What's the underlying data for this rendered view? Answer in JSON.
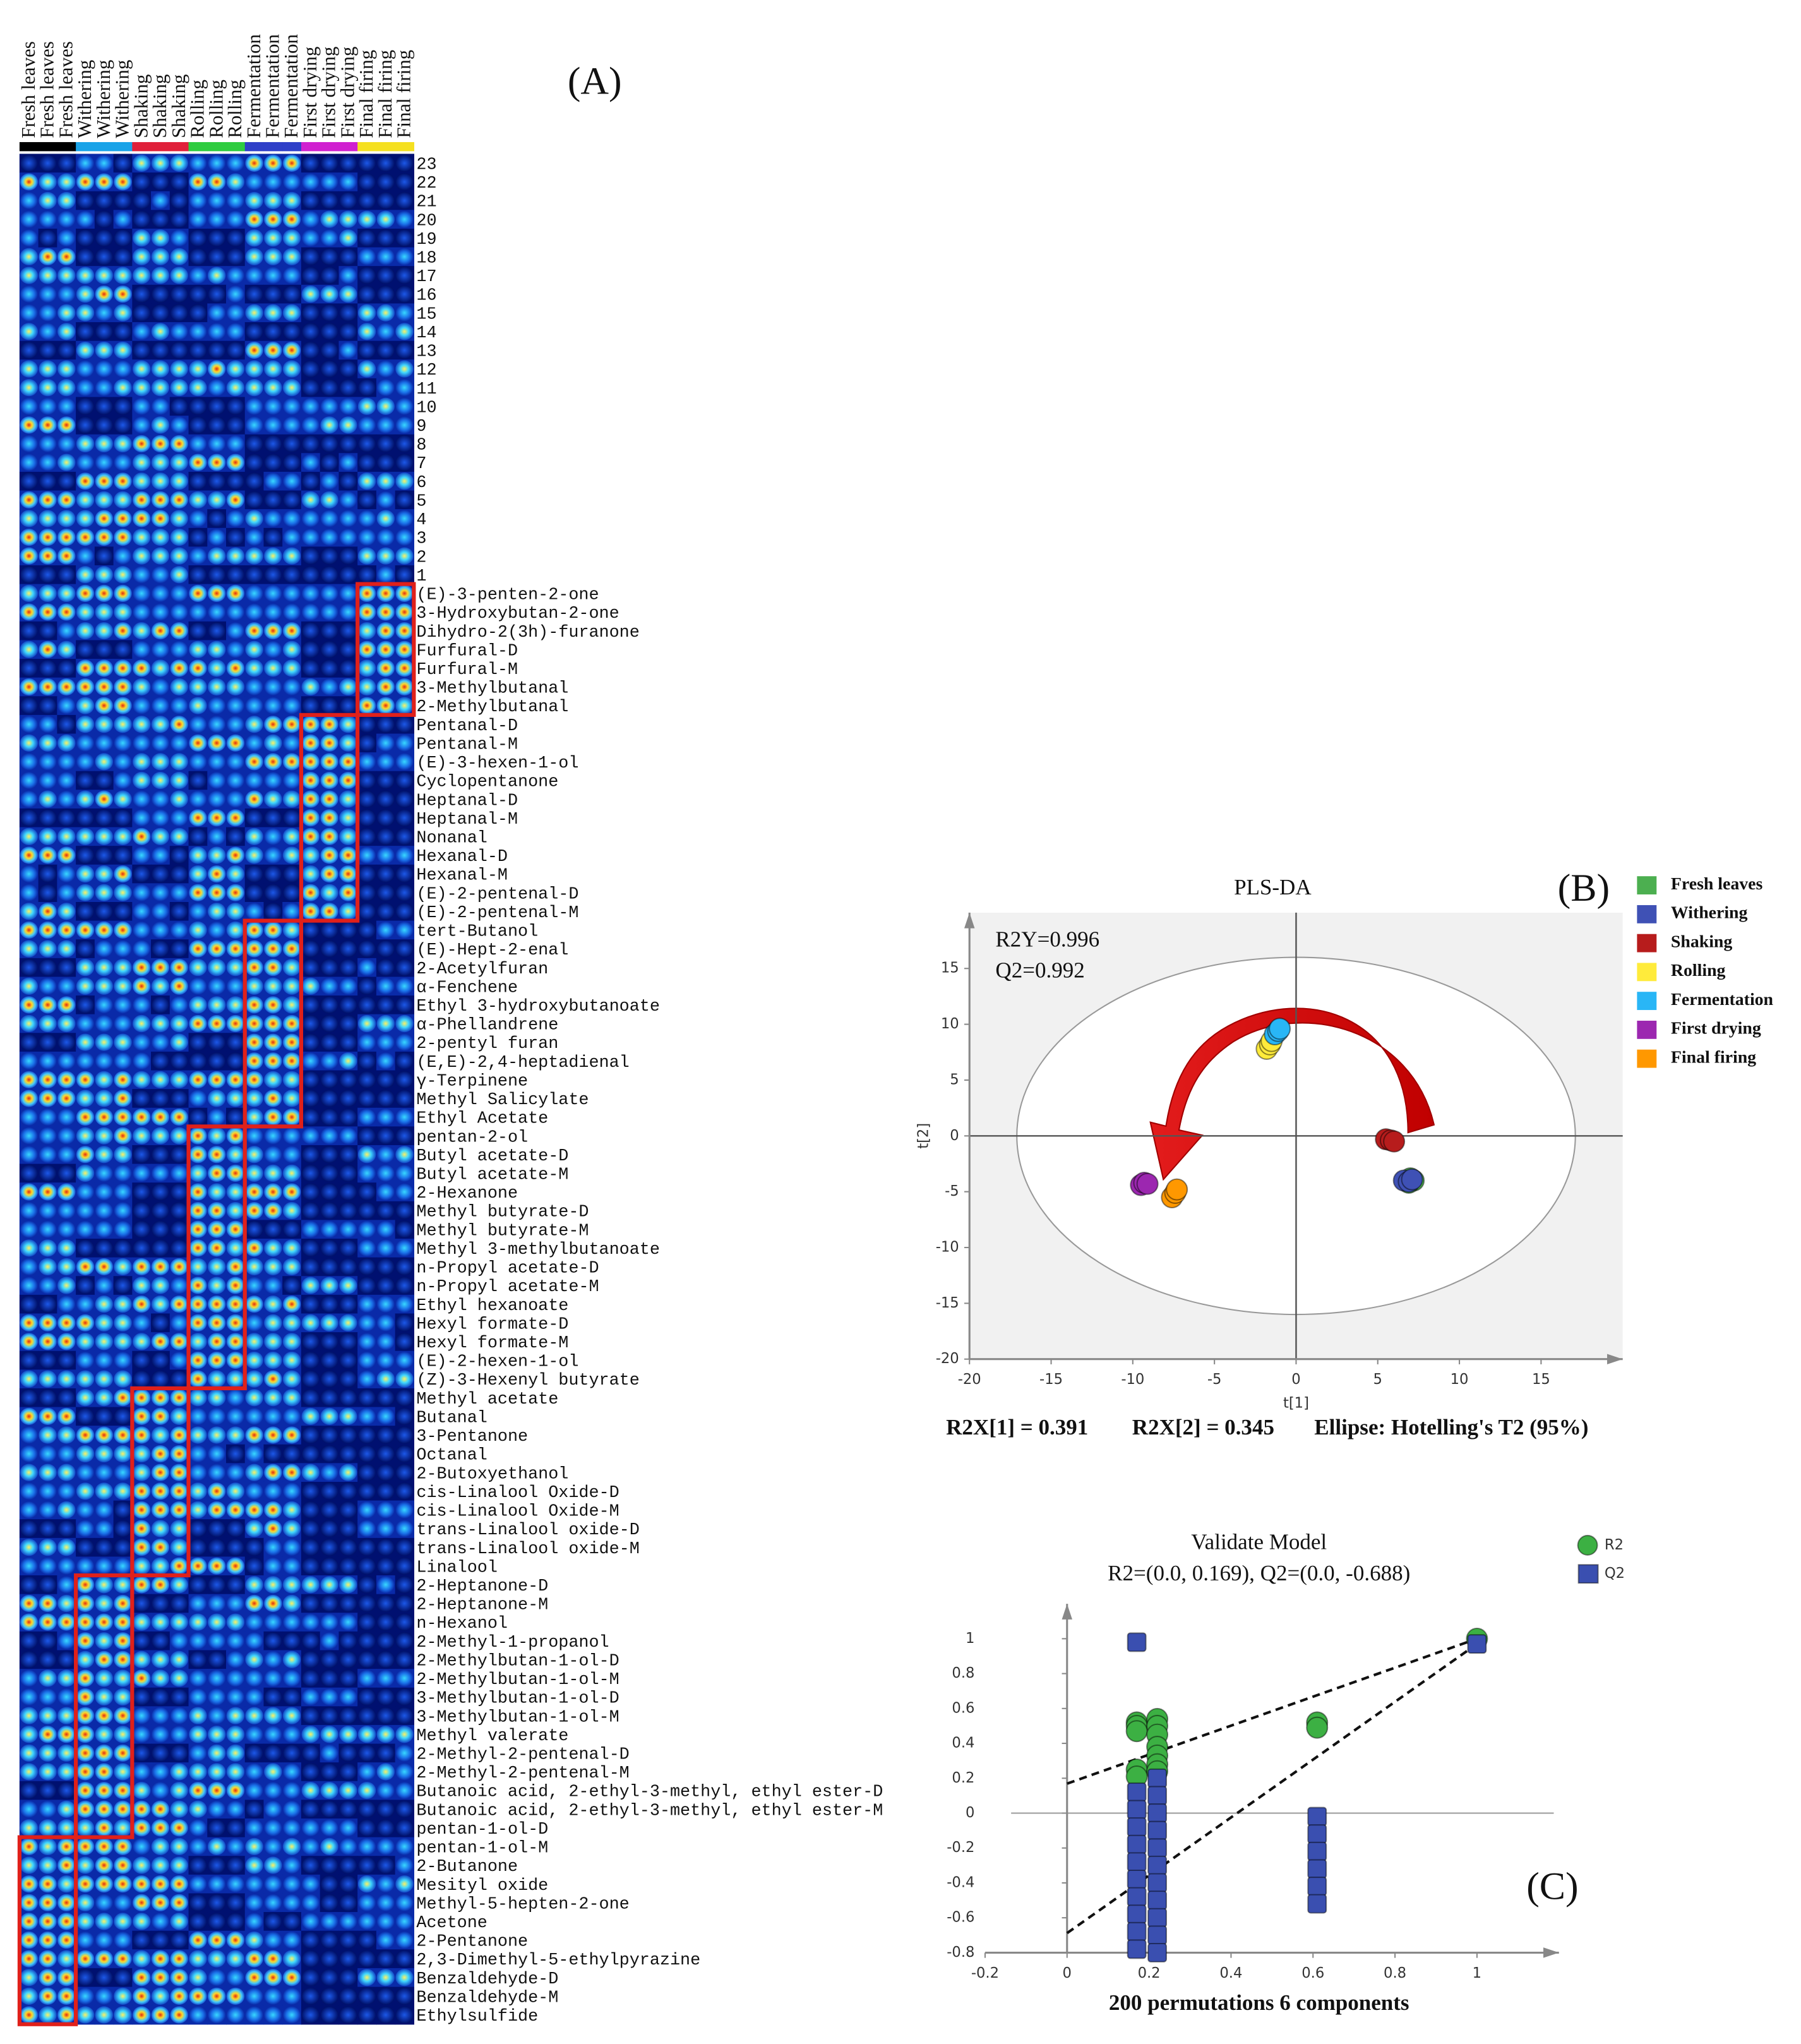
{
  "chart_data": [
    {
      "type": "heatmap",
      "label": "(A)",
      "columns": [
        {
          "name": "Fresh leaves",
          "color": "#000000"
        },
        {
          "name": "Fresh leaves",
          "color": "#000000"
        },
        {
          "name": "Fresh leaves",
          "color": "#000000"
        },
        {
          "name": "Withering",
          "color": "#1aa3e8"
        },
        {
          "name": "Withering",
          "color": "#1aa3e8"
        },
        {
          "name": "Withering",
          "color": "#1aa3e8"
        },
        {
          "name": "Shaking",
          "color": "#e0203a"
        },
        {
          "name": "Shaking",
          "color": "#e0203a"
        },
        {
          "name": "Shaking",
          "color": "#e0203a"
        },
        {
          "name": "Rolling",
          "color": "#2ecc40"
        },
        {
          "name": "Rolling",
          "color": "#2ecc40"
        },
        {
          "name": "Rolling",
          "color": "#2ecc40"
        },
        {
          "name": "Fermentation",
          "color": "#2f3fc8"
        },
        {
          "name": "Fermentation",
          "color": "#2f3fc8"
        },
        {
          "name": "Fermentation",
          "color": "#2f3fc8"
        },
        {
          "name": "First drying",
          "color": "#d020d0"
        },
        {
          "name": "First drying",
          "color": "#d020d0"
        },
        {
          "name": "First drying",
          "color": "#d020d0"
        },
        {
          "name": "Final firing",
          "color": "#f5e020"
        },
        {
          "name": "Final firing",
          "color": "#f5e020"
        },
        {
          "name": "Final firing",
          "color": "#f5e020"
        }
      ],
      "rows": [
        23,
        22,
        21,
        20,
        19,
        18,
        17,
        16,
        15,
        14,
        13,
        12,
        11,
        10,
        9,
        8,
        7,
        6,
        5,
        4,
        3,
        2,
        1
      ],
      "clusters": [
        {
          "stage": "Final firing",
          "compounds": [
            "(E)-3-penten-2-one",
            "3-Hydroxybutan-2-one",
            "Dihydro-2(3h)-furanone",
            "Furfural-D",
            "Furfural-M",
            "3-Methylbutanal",
            "2-Methylbutanal"
          ]
        },
        {
          "stage": "First drying",
          "compounds": [
            "Pentanal-D",
            "Pentanal-M",
            "(E)-3-hexen-1-ol",
            "Cyclopentanone",
            "Heptanal-D",
            "Heptanal-M",
            "Nonanal",
            "Hexanal-D",
            "Hexanal-M",
            "(E)-2-pentenal-D",
            "(E)-2-pentenal-M"
          ]
        },
        {
          "stage": "Fermentation",
          "compounds": [
            "tert-Butanol",
            "(E)-Hept-2-enal",
            "2-Acetylfuran",
            "α-Fenchene",
            "Ethyl 3-hydroxybutanoate",
            "α-Phellandrene",
            "2-pentyl furan",
            "(E,E)-2,4-heptadienal",
            "γ-Terpinene",
            "Methyl Salicylate",
            "Ethyl Acetate"
          ]
        },
        {
          "stage": "Rolling",
          "compounds": [
            "pentan-2-ol",
            "Butyl acetate-D",
            "Butyl acetate-M",
            "2-Hexanone",
            "Methyl butyrate-D",
            "Methyl butyrate-M",
            "Methyl 3-methylbutanoate",
            "n-Propyl acetate-D",
            "n-Propyl acetate-M",
            "Ethyl hexanoate",
            "Hexyl formate-D",
            "Hexyl formate-M",
            "(E)-2-hexen-1-ol",
            "(Z)-3-Hexenyl butyrate"
          ]
        },
        {
          "stage": "Shaking",
          "compounds": [
            "Methyl acetate",
            "Butanal",
            "3-Pentanone",
            "Octanal",
            "2-Butoxyethanol",
            "cis-Linalool Oxide-D",
            "cis-Linalool Oxide-M",
            "trans-Linalool oxide-D",
            "trans-Linalool oxide-M",
            "Linalool"
          ]
        },
        {
          "stage": "Withering",
          "compounds": [
            "2-Heptanone-D",
            "2-Heptanone-M",
            "n-Hexanol",
            "2-Methyl-1-propanol",
            "2-Methylbutan-1-ol-D",
            "2-Methylbutan-1-ol-M",
            "3-Methylbutan-1-ol-D",
            "3-Methylbutan-1-ol-M",
            "Methyl valerate",
            "2-Methyl-2-pentenal-D",
            "2-Methyl-2-pentenal-M",
            "Butanoic acid, 2-ethyl-3-methyl, ethyl ester-D",
            "Butanoic acid, 2-ethyl-3-methyl, ethyl ester-M",
            "pentan-1-ol-D"
          ]
        },
        {
          "stage": "Fresh leaves",
          "compounds": [
            "pentan-1-ol-M",
            "2-Butanone",
            "Mesityl oxide",
            "Methyl-5-hepten-2-one",
            "Acetone",
            "2-Pentanone",
            "2,3-Dimethyl-5-ethylpyrazine",
            "Benzaldehyde-D",
            "Benzaldehyde-M",
            "Ethylsulfide"
          ]
        }
      ]
    },
    {
      "type": "scatter",
      "title": "PLS-DA",
      "label": "(B)",
      "annotations": [
        "R2Y=0.996",
        "Q2=0.992"
      ],
      "footer": [
        "R2X[1] = 0.391",
        "R2X[2] = 0.345",
        "Ellipse: Hotelling's T2 (95%)"
      ],
      "x_label": "t[1]",
      "y_label": "t[2]",
      "xlim": [
        -20,
        20
      ],
      "ylim": [
        -20,
        20
      ],
      "xticks": [
        -20,
        -15,
        -10,
        -5,
        0,
        5,
        10,
        15
      ],
      "yticks": [
        -20,
        -15,
        -10,
        -5,
        0,
        5,
        10,
        15
      ],
      "ellipse": {
        "rx": 17.1,
        "ry": 16
      },
      "series": [
        {
          "name": "Fresh leaves",
          "color": "#4caf50",
          "x": [
            7.0,
            7.2,
            6.9
          ],
          "y": [
            -3.8,
            -4.0,
            -4.2
          ]
        },
        {
          "name": "Withering",
          "color": "#3f51b5",
          "x": [
            6.6,
            6.9,
            7.1
          ],
          "y": [
            -4.0,
            -4.1,
            -3.9
          ]
        },
        {
          "name": "Shaking",
          "color": "#b71c1c",
          "x": [
            5.5,
            5.8,
            6.0
          ],
          "y": [
            -0.3,
            -0.4,
            -0.5
          ]
        },
        {
          "name": "Rolling",
          "color": "#ffeb3b",
          "x": [
            -1.8,
            -1.6,
            -1.5
          ],
          "y": [
            7.8,
            8.2,
            8.5
          ]
        },
        {
          "name": "Fermentation",
          "color": "#29b6f6",
          "x": [
            -1.3,
            -1.1,
            -1.0
          ],
          "y": [
            9.1,
            9.4,
            9.6
          ]
        },
        {
          "name": "First drying",
          "color": "#9c27b0",
          "x": [
            -9.5,
            -9.3,
            -9.1
          ],
          "y": [
            -4.4,
            -4.2,
            -4.3
          ]
        },
        {
          "name": "Final firing",
          "color": "#ff9800",
          "x": [
            -7.6,
            -7.4,
            -7.3
          ],
          "y": [
            -5.5,
            -5.1,
            -4.8
          ]
        }
      ]
    },
    {
      "type": "scatter",
      "title": "Validate Model",
      "subtitle": "R2=(0.0, 0.169), Q2=(0.0, -0.688)",
      "label": "(C)",
      "x_label": "200 permutations 6 components",
      "xlim": [
        -0.2,
        1.2
      ],
      "ylim": [
        -0.8,
        1.2
      ],
      "xticks": [
        -0.2,
        0,
        0.2,
        0.4,
        0.6,
        0.8,
        1
      ],
      "yticks": [
        -0.8,
        -0.6,
        -0.4,
        -0.2,
        0,
        0.2,
        0.4,
        0.6,
        0.8,
        1
      ],
      "series": [
        {
          "name": "R2",
          "color": "#3cb043",
          "marker": "circle",
          "intercept": 0.169,
          "x": [
            0.17,
            0.17,
            0.17,
            0.17,
            0.17,
            0.22,
            0.22,
            0.22,
            0.22,
            0.22,
            0.22,
            0.22,
            0.61,
            0.61,
            1
          ],
          "y": [
            0.52,
            0.5,
            0.47,
            0.25,
            0.21,
            0.54,
            0.5,
            0.45,
            0.38,
            0.33,
            0.28,
            0.24,
            0.52,
            0.49,
            1.0
          ]
        },
        {
          "name": "Q2",
          "color": "#3a4fb0",
          "marker": "square",
          "intercept": -0.688,
          "x": [
            0.17,
            0.17,
            0.17,
            0.17,
            0.17,
            0.17,
            0.17,
            0.17,
            0.17,
            0.17,
            0.17,
            0.22,
            0.22,
            0.22,
            0.22,
            0.22,
            0.22,
            0.22,
            0.22,
            0.22,
            0.22,
            0.22,
            0.61,
            0.61,
            0.61,
            0.61,
            0.61,
            0.61,
            1
          ],
          "y": [
            0.98,
            0.12,
            0.02,
            -0.08,
            -0.18,
            -0.28,
            -0.38,
            -0.48,
            -0.58,
            -0.68,
            -0.78,
            0.2,
            0.1,
            0,
            -0.1,
            -0.2,
            -0.3,
            -0.4,
            -0.5,
            -0.6,
            -0.7,
            -0.8,
            -0.02,
            -0.12,
            -0.22,
            -0.32,
            -0.42,
            -0.52,
            0.97
          ]
        }
      ]
    }
  ]
}
